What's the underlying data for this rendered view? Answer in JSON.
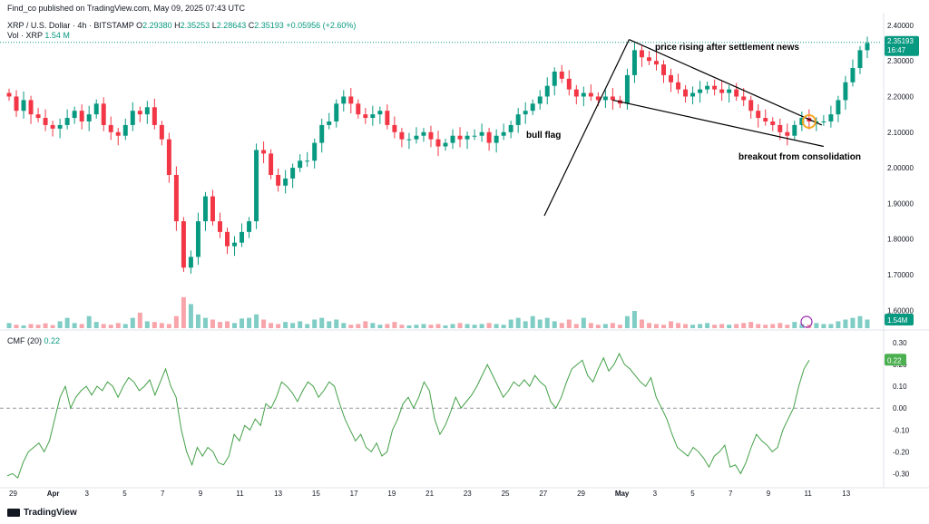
{
  "header": {
    "publisher_line": "Find_co published on TradingView.com, May 09, 2025 07:43 UTC",
    "symbol": "XRP / U.S. Dollar · 4h · BITSTAMP",
    "ohlc": {
      "o_label": "O",
      "o": "2.29380",
      "h_label": "H",
      "h": "2.35253",
      "l_label": "L",
      "l": "2.28643",
      "c_label": "C",
      "c": "2.35193",
      "change": "+0.05956 (+2.60%)"
    },
    "volume_label": "Vol · XRP",
    "volume_value": "1.54 M",
    "cmf_label": "CMF (20)",
    "cmf_value": "0.22"
  },
  "footer": {
    "brand": "TradingView"
  },
  "colors": {
    "up": "#089981",
    "down": "#f23645",
    "vol_up": "#7fcdc4",
    "vol_down": "#f7a4aa",
    "cmf": "#43a047",
    "price_line": "#089981"
  },
  "chart_data": [
    {
      "type": "candlestick",
      "title": "XRP / U.S. Dollar · 4h · BITSTAMP",
      "ylim": [
        1.55,
        2.42
      ],
      "y_ticks": [
        "2.40000",
        "2.30000",
        "2.20000",
        "2.10000",
        "2.00000",
        "1.90000",
        "1.80000",
        "1.70000",
        "1.60000"
      ],
      "x_labels": [
        "29",
        "Apr",
        "3",
        "5",
        "7",
        "9",
        "11",
        "13",
        "15",
        "17",
        "19",
        "21",
        "23",
        "25",
        "27",
        "29",
        "May",
        "3",
        "5",
        "7",
        "9",
        "11",
        "13"
      ],
      "last_price": "2.35193",
      "countdown": "16:47",
      "annotations": [
        "bull flag",
        "price rising after settlement news",
        "breakout from consolidation"
      ],
      "path_points": [
        2.2,
        2.16,
        2.19,
        2.15,
        2.14,
        2.12,
        2.11,
        2.12,
        2.14,
        2.16,
        2.13,
        2.15,
        2.18,
        2.12,
        2.1,
        2.09,
        2.12,
        2.16,
        2.15,
        2.17,
        2.12,
        2.08,
        1.98,
        1.85,
        1.72,
        1.75,
        1.85,
        1.92,
        1.85,
        1.82,
        1.78,
        1.79,
        1.82,
        1.85,
        2.05,
        2.04,
        1.98,
        1.95,
        1.97,
        2.0,
        2.02,
        2.02,
        2.07,
        2.12,
        2.13,
        2.18,
        2.2,
        2.18,
        2.15,
        2.14,
        2.15,
        2.16,
        2.12,
        2.1,
        2.08,
        2.08,
        2.09,
        2.1,
        2.08,
        2.06,
        2.07,
        2.09,
        2.08,
        2.09,
        2.09,
        2.1,
        2.07,
        2.09,
        2.1,
        2.12,
        2.15,
        2.16,
        2.18,
        2.2,
        2.23,
        2.27,
        2.25,
        2.22,
        2.2,
        2.21,
        2.2,
        2.19,
        2.2,
        2.19,
        2.18,
        2.26,
        2.33,
        2.31,
        2.3,
        2.29,
        2.26,
        2.24,
        2.22,
        2.2,
        2.21,
        2.22,
        2.23,
        2.22,
        2.21,
        2.22,
        2.2,
        2.19,
        2.16,
        2.14,
        2.13,
        2.12,
        2.1,
        2.09,
        2.12,
        2.14,
        2.13,
        2.13,
        2.13,
        2.15,
        2.19,
        2.24,
        2.28,
        2.33,
        2.35
      ],
      "volume_path": [
        0.15,
        0.1,
        0.08,
        0.12,
        0.1,
        0.14,
        0.09,
        0.2,
        0.3,
        0.15,
        0.12,
        0.35,
        0.18,
        0.12,
        0.1,
        0.15,
        0.12,
        0.3,
        0.45,
        0.2,
        0.18,
        0.15,
        0.12,
        0.35,
        0.9,
        0.7,
        0.4,
        0.3,
        0.25,
        0.18,
        0.2,
        0.15,
        0.28,
        0.3,
        0.4,
        0.25,
        0.15,
        0.12,
        0.18,
        0.15,
        0.2,
        0.12,
        0.25,
        0.3,
        0.2,
        0.25,
        0.15,
        0.1,
        0.12,
        0.2,
        0.15,
        0.1,
        0.12,
        0.18,
        0.1,
        0.08,
        0.1,
        0.12,
        0.1,
        0.12,
        0.08,
        0.12,
        0.15,
        0.12,
        0.1,
        0.12,
        0.15,
        0.12,
        0.1,
        0.25,
        0.3,
        0.2,
        0.35,
        0.25,
        0.3,
        0.2,
        0.15,
        0.25,
        0.12,
        0.3,
        0.15,
        0.1,
        0.12,
        0.15,
        0.1,
        0.35,
        0.5,
        0.25,
        0.15,
        0.12,
        0.1,
        0.2,
        0.15,
        0.12,
        0.1,
        0.12,
        0.15,
        0.1,
        0.12,
        0.1,
        0.12,
        0.15,
        0.18,
        0.12,
        0.1,
        0.12,
        0.15,
        0.1,
        0.18,
        0.12,
        0.1,
        0.15,
        0.12,
        0.12,
        0.2,
        0.25,
        0.3,
        0.35,
        0.25
      ],
      "volume_badge": "1.54M"
    },
    {
      "type": "line",
      "title": "CMF (20)",
      "ylim": [
        -0.34,
        0.3
      ],
      "y_ticks": [
        "0.30",
        "0.20",
        "0.10",
        "0.00",
        "-0.10",
        "-0.20",
        "-0.30"
      ],
      "last_value": "0.22",
      "values": [
        -0.31,
        -0.3,
        -0.32,
        -0.25,
        -0.2,
        -0.18,
        -0.16,
        -0.2,
        -0.15,
        -0.05,
        0.05,
        0.1,
        0.0,
        0.05,
        0.08,
        0.1,
        0.06,
        0.1,
        0.08,
        0.12,
        0.1,
        0.05,
        0.1,
        0.14,
        0.12,
        0.08,
        0.1,
        0.13,
        0.06,
        0.12,
        0.18,
        0.1,
        0.05,
        -0.1,
        -0.2,
        -0.26,
        -0.18,
        -0.22,
        -0.18,
        -0.2,
        -0.25,
        -0.26,
        -0.22,
        -0.12,
        -0.15,
        -0.08,
        -0.1,
        -0.05,
        -0.08,
        0.02,
        0.0,
        0.05,
        0.12,
        0.1,
        0.07,
        0.03,
        0.08,
        0.12,
        0.1,
        0.05,
        0.08,
        0.12,
        0.1,
        0.02,
        -0.05,
        -0.1,
        -0.15,
        -0.12,
        -0.18,
        -0.2,
        -0.16,
        -0.22,
        -0.2,
        -0.1,
        -0.05,
        0.02,
        0.05,
        0.0,
        0.05,
        0.12,
        0.08,
        -0.05,
        -0.12,
        -0.08,
        -0.02,
        0.05,
        0.0,
        0.03,
        0.06,
        0.1,
        0.15,
        0.2,
        0.15,
        0.1,
        0.05,
        0.08,
        0.12,
        0.1,
        0.13,
        0.1,
        0.15,
        0.12,
        0.1,
        0.03,
        0.0,
        0.05,
        0.12,
        0.18,
        0.2,
        0.22,
        0.15,
        0.12,
        0.18,
        0.23,
        0.17,
        0.2,
        0.25,
        0.2,
        0.18,
        0.15,
        0.12,
        0.1,
        0.14,
        0.05,
        0.0,
        -0.05,
        -0.12,
        -0.18,
        -0.2,
        -0.22,
        -0.18,
        -0.2,
        -0.23,
        -0.27,
        -0.22,
        -0.2,
        -0.17,
        -0.27,
        -0.26,
        -0.3,
        -0.25,
        -0.18,
        -0.12,
        -0.15,
        -0.17,
        -0.2,
        -0.18,
        -0.1,
        -0.05,
        0.0,
        0.1,
        0.18,
        0.22
      ]
    }
  ]
}
